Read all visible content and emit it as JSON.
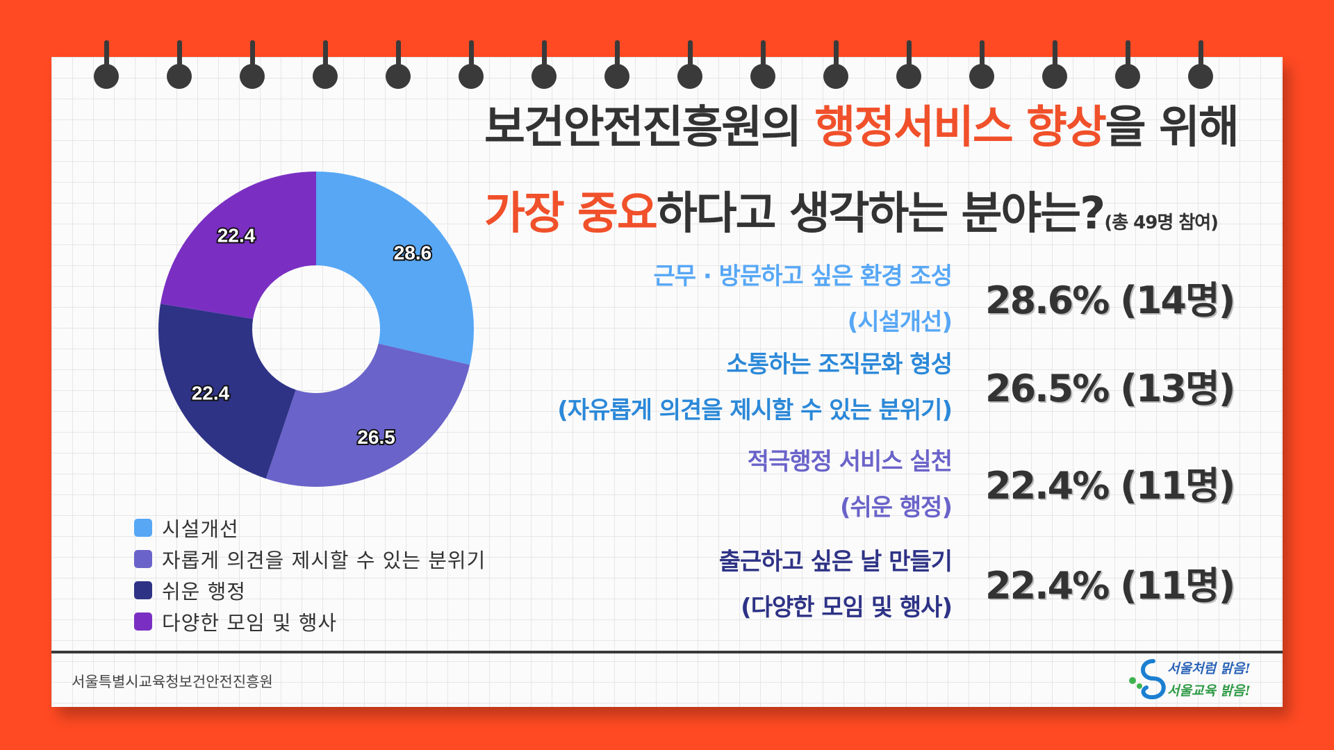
{
  "title": {
    "line1_a": "보건안전진흥원의 ",
    "line1_hl": "행정서비스 향상",
    "line1_b": "을 위해",
    "line2_hl": "가장 중요",
    "line2_b": "하다고 생각하는 분야는?",
    "line2_note": "(총 49명 참여)"
  },
  "categories": [
    {
      "line1": "근무 · 방문하고 싶은 환경 조성",
      "line2": "(시설개선)",
      "pct": "28.6% (14명)",
      "color": "#57a7f5"
    },
    {
      "line1": "소통하는 조직문화 형성",
      "line2": "(자유롭게 의견을 제시할 수 있는 분위기)",
      "pct": "26.5% (13명)",
      "color": "#2b88d8"
    },
    {
      "line1": "적극행정 서비스 실천",
      "line2": "(쉬운 행정)",
      "pct": "22.4% (11명)",
      "color": "#6a63c9"
    },
    {
      "line1": "출근하고 싶은 날 만들기",
      "line2": "(다양한 모임 및 행사)",
      "pct": "22.4% (11명)",
      "color": "#2e3386"
    }
  ],
  "chart_data": {
    "type": "pie",
    "categories": [
      "시설개선",
      "자롭게 의견을 제시할 수 있는 분위기",
      "쉬운 행정",
      "다양한 모임 및 행사"
    ],
    "values": [
      28.6,
      26.5,
      22.4,
      22.4
    ],
    "data_labels": [
      "28.6",
      "26.5",
      "22.4",
      "22.4"
    ],
    "colors": [
      "#57a7f5",
      "#6a63c9",
      "#2e3386",
      "#7a2fc2"
    ],
    "donut": true,
    "legend_position": "bottom-left"
  },
  "legend": [
    {
      "label": "시설개선",
      "color": "#57a7f5"
    },
    {
      "label": "자롭게 의견을 제시할 수 있는 분위기",
      "color": "#6a63c9"
    },
    {
      "label": "쉬운 행정",
      "color": "#2e3386"
    },
    {
      "label": "다양한 모임 및 행사",
      "color": "#7a2fc2"
    }
  ],
  "footer": {
    "org": "서울특별시교육청보건안전진흥원"
  },
  "logo": {
    "line1": "서울처럼 맑음!",
    "line2": "서울교육 밝음!"
  }
}
